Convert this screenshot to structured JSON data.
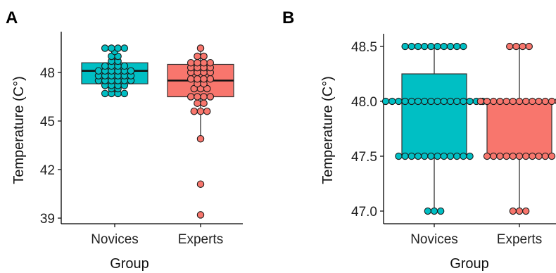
{
  "colors": {
    "novices": "#00BFC4",
    "experts": "#F8766D"
  },
  "chart_data": [
    {
      "panel": "A",
      "type": "box",
      "xlabel": "Group",
      "ylabel": "Temperature (C°)",
      "categories": [
        "Novices",
        "Experts"
      ],
      "ylim": [
        38.5,
        50.5
      ],
      "yticks": [
        39,
        42,
        45,
        48
      ],
      "boxes": [
        {
          "name": "Novices",
          "q1": 47.3,
          "median": 48.1,
          "q3": 48.6,
          "whisker_low": 46.6,
          "whisker_high": 49.5,
          "points": [
            46.7,
            46.7,
            46.7,
            46.7,
            47.0,
            47.0,
            47.2,
            47.2,
            47.2,
            47.2,
            47.5,
            47.5,
            47.5,
            47.5,
            47.5,
            47.5,
            47.8,
            47.8,
            47.8,
            47.8,
            47.8,
            47.8,
            48.1,
            48.1,
            48.1,
            48.1,
            48.1,
            48.1,
            48.4,
            48.4,
            48.4,
            48.4,
            48.7,
            48.7,
            49.0,
            49.0,
            49.3,
            49.5,
            49.5,
            49.5,
            49.5
          ]
        },
        {
          "name": "Experts",
          "q1": 46.5,
          "median": 47.5,
          "q3": 48.5,
          "whisker_low": 43.9,
          "whisker_high": 49.5,
          "points": [
            39.2,
            41.1,
            43.9,
            45.6,
            45.6,
            45.6,
            46.1,
            46.1,
            46.5,
            46.5,
            46.5,
            46.5,
            47.0,
            47.0,
            47.0,
            47.3,
            47.3,
            47.6,
            47.6,
            47.6,
            47.6,
            48.0,
            48.0,
            48.0,
            48.0,
            48.3,
            48.3,
            48.3,
            48.3,
            48.6,
            48.6,
            48.6,
            48.6,
            49.0,
            49.0,
            49.5
          ]
        }
      ]
    },
    {
      "panel": "B",
      "type": "box",
      "xlabel": "Group",
      "ylabel": "Temperature (C°)",
      "categories": [
        "Novices",
        "Experts"
      ],
      "ylim": [
        46.95,
        48.55
      ],
      "yticks": [
        "47.0",
        "47.5",
        "48.0",
        "48.5"
      ],
      "boxes": [
        {
          "name": "Novices",
          "q1": 47.5,
          "median": 48.0,
          "q3": 48.25,
          "whisker_low": 47.0,
          "whisker_high": 48.5,
          "groups": [
            {
              "value": 47.0,
              "count": 3
            },
            {
              "value": 47.5,
              "count": 12
            },
            {
              "value": 48.0,
              "count": 16
            },
            {
              "value": 48.5,
              "count": 10
            }
          ]
        },
        {
          "name": "Experts",
          "q1": 47.5,
          "median": 48.0,
          "q3": 48.0,
          "whisker_low": 47.0,
          "whisker_high": 48.5,
          "groups": [
            {
              "value": 47.0,
              "count": 3
            },
            {
              "value": 47.5,
              "count": 11
            },
            {
              "value": 48.0,
              "count": 13
            },
            {
              "value": 48.5,
              "count": 4
            }
          ]
        }
      ]
    }
  ]
}
